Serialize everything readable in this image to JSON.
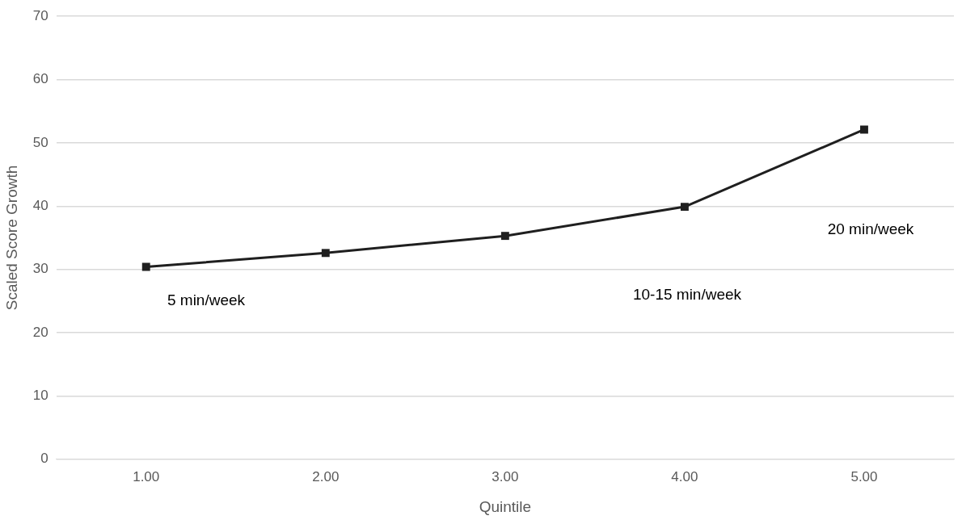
{
  "chart_data": {
    "type": "line",
    "xlabel": "Quintile",
    "ylabel": "Scaled Score Growth",
    "categories": [
      "1.00",
      "2.00",
      "3.00",
      "4.00",
      "5.00"
    ],
    "series": [
      {
        "color": "#1f1f1f",
        "values": [
          30.4,
          32.6,
          35.3,
          39.9,
          52.1
        ]
      }
    ],
    "ylim": [
      0,
      70
    ],
    "yticks": [
      0,
      10,
      20,
      30,
      40,
      50,
      60,
      70
    ],
    "grid": "y",
    "legend": false,
    "marker": "square",
    "line_style": "solid",
    "annotations": [
      "5 min/week",
      "10-15 min/week",
      "20 min/week"
    ]
  }
}
